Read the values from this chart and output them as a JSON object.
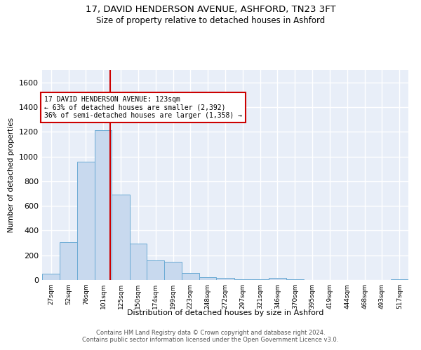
{
  "title1": "17, DAVID HENDERSON AVENUE, ASHFORD, TN23 3FT",
  "title2": "Size of property relative to detached houses in Ashford",
  "xlabel": "Distribution of detached houses by size in Ashford",
  "ylabel": "Number of detached properties",
  "footnote": "Contains HM Land Registry data © Crown copyright and database right 2024.\nContains public sector information licensed under the Open Government Licence v3.0.",
  "bar_color": "#c8d9ee",
  "bar_edge_color": "#6aaad4",
  "annotation_line_color": "#cc0000",
  "annotation_property": "123sqm",
  "annotation_smaller_pct": "63%",
  "annotation_smaller_n": "2,392",
  "annotation_larger_pct": "36%",
  "annotation_larger_n": "1,358",
  "property_size_sqm": 123,
  "categories": [
    "27sqm",
    "52sqm",
    "76sqm",
    "101sqm",
    "125sqm",
    "150sqm",
    "174sqm",
    "199sqm",
    "223sqm",
    "248sqm",
    "272sqm",
    "297sqm",
    "321sqm",
    "346sqm",
    "370sqm",
    "395sqm",
    "419sqm",
    "444sqm",
    "468sqm",
    "493sqm",
    "517sqm"
  ],
  "bin_edges": [
    27,
    52,
    76,
    101,
    125,
    150,
    174,
    199,
    223,
    248,
    272,
    297,
    321,
    346,
    370,
    395,
    419,
    444,
    468,
    493,
    517,
    542
  ],
  "values": [
    50,
    305,
    960,
    1210,
    690,
    295,
    160,
    148,
    58,
    20,
    17,
    5,
    4,
    17,
    3,
    2,
    2,
    2,
    2,
    2,
    4
  ],
  "ylim": [
    0,
    1700
  ],
  "yticks": [
    0,
    200,
    400,
    600,
    800,
    1000,
    1200,
    1400,
    1600
  ],
  "plot_bg_color": "#e8eef8",
  "grid_color": "#ffffff",
  "title_fontsize": 9.5,
  "subtitle_fontsize": 8.5,
  "annotation_rect_color": "#cc0000",
  "footnote_fontsize": 6.0
}
